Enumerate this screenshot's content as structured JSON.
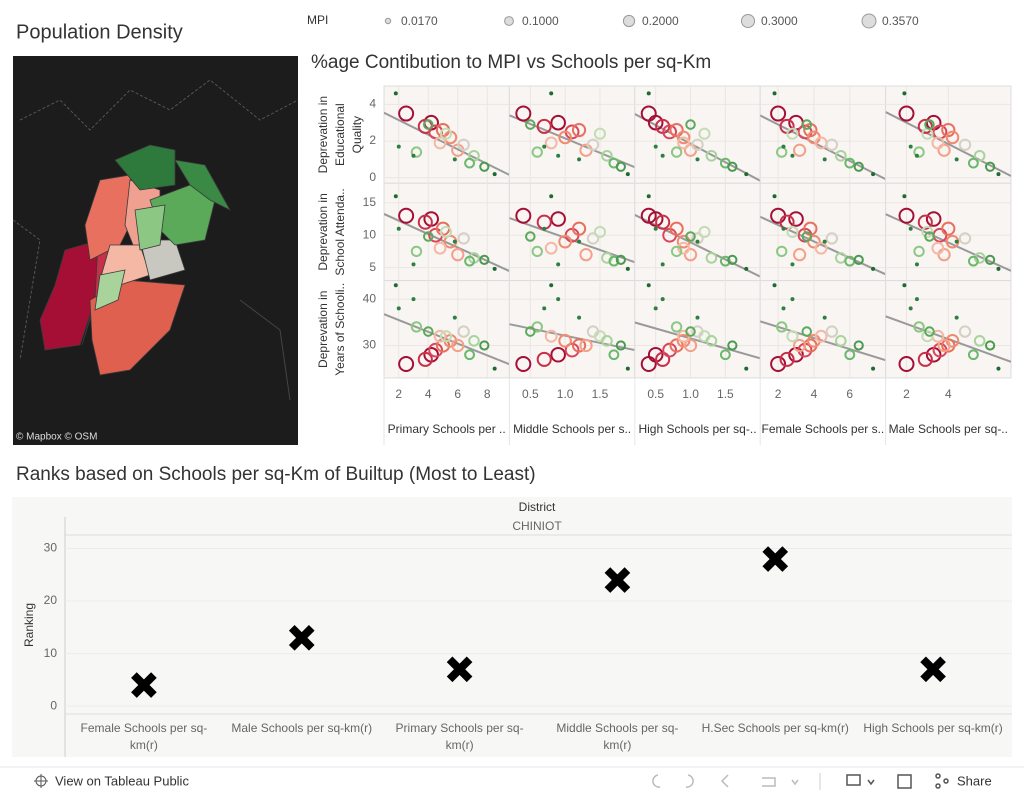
{
  "map": {
    "title": "Population Density",
    "credits": "© Mapbox © OSM"
  },
  "chart_data": [
    {
      "type": "scatter-matrix",
      "title": "%age Contibution to MPI vs Schools per sq-Km",
      "size_legend": {
        "title": "MPI",
        "ticks": [
          {
            "value": 0.017,
            "label": "0.0170"
          },
          {
            "value": 0.1,
            "label": "0.1000"
          },
          {
            "value": 0.2,
            "label": "0.2000"
          },
          {
            "value": 0.3,
            "label": "0.3000"
          },
          {
            "value": 0.357,
            "label": "0.3570"
          }
        ]
      },
      "columns": [
        {
          "label": "Primary Schools per ..",
          "xlim": [
            1,
            9.5
          ],
          "xticks": [
            2,
            4,
            6,
            8
          ],
          "x": [
            2.5,
            4.2,
            3.8,
            4.5,
            5.0,
            5.5,
            6.0,
            4.8,
            6.4,
            5.2,
            7.1,
            3.2,
            6.8,
            4.0,
            7.8,
            2.0,
            3.0,
            8.5,
            1.8,
            5.8
          ]
        },
        {
          "label": "Middle Schools per s..",
          "xlim": [
            0.2,
            2.0
          ],
          "xticks": [
            0.5,
            {
              "value": 1,
              "label": "1.0"
            },
            1.5
          ],
          "x": [
            0.4,
            0.9,
            0.7,
            1.1,
            1.2,
            1.0,
            1.3,
            0.8,
            1.4,
            1.5,
            1.6,
            0.6,
            1.7,
            0.5,
            1.8,
            0.7,
            0.9,
            1.9,
            0.8,
            1.2
          ]
        },
        {
          "label": "High Schools per sq-..",
          "xlim": [
            0.2,
            2.0
          ],
          "xticks": [
            0.5,
            {
              "value": 1,
              "label": "1.0"
            },
            1.5
          ],
          "x": [
            0.4,
            0.5,
            0.6,
            0.7,
            0.8,
            0.9,
            1.0,
            0.9,
            1.1,
            1.2,
            1.3,
            0.8,
            1.5,
            1.0,
            1.6,
            0.5,
            0.6,
            1.8,
            0.4,
            1.1
          ]
        },
        {
          "label": "Female Schools per s..",
          "xlim": [
            1,
            8
          ],
          "xticks": [
            2,
            4,
            6
          ],
          "x": [
            2.0,
            3.0,
            2.5,
            3.5,
            3.8,
            4.0,
            3.2,
            4.4,
            5.0,
            2.8,
            5.5,
            2.2,
            6.0,
            3.6,
            6.5,
            2.3,
            2.8,
            7.3,
            1.8,
            4.6
          ]
        },
        {
          "label": "Male Schools per sq-..",
          "xlim": [
            1,
            7
          ],
          "xticks": [
            2,
            4
          ],
          "x": [
            2.0,
            3.3,
            2.9,
            3.6,
            4.0,
            4.2,
            3.8,
            3.5,
            4.8,
            3.0,
            5.5,
            2.6,
            5.2,
            3.1,
            6.0,
            2.2,
            2.5,
            6.4,
            1.9,
            4.4
          ]
        }
      ],
      "rows": [
        {
          "label_lines": [
            "Deprevation in",
            "Educational",
            "Quality"
          ],
          "ylim": [
            -0.3,
            5
          ],
          "yticks": [
            0,
            2,
            4
          ],
          "y": [
            3.5,
            3.0,
            2.8,
            2.5,
            2.6,
            2.2,
            1.5,
            1.9,
            1.8,
            2.4,
            1.2,
            1.4,
            0.8,
            2.9,
            0.6,
            1.7,
            1.2,
            0.2,
            4.6,
            1.0
          ]
        },
        {
          "label_lines": [
            "Deprevation in",
            "School Attenda.."
          ],
          "ylim": [
            3,
            18
          ],
          "yticks": [
            5,
            10,
            15
          ],
          "y": [
            13,
            12.5,
            12,
            10,
            11,
            9,
            7,
            8,
            9.5,
            10.5,
            6.5,
            7.5,
            6,
            9.8,
            6.2,
            11,
            5.5,
            4.8,
            16,
            9
          ]
        },
        {
          "label_lines": [
            "Deprevation in",
            "Years of Schooli.."
          ],
          "ylim": [
            23,
            44
          ],
          "yticks": [
            30,
            40
          ],
          "y": [
            26,
            28,
            27,
            29,
            30,
            31,
            30,
            32,
            33,
            32,
            31,
            34,
            28,
            33,
            30,
            38,
            40,
            25,
            43,
            36
          ]
        }
      ],
      "mpi": [
        0.357,
        0.33,
        0.3,
        0.28,
        0.25,
        0.22,
        0.2,
        0.18,
        0.16,
        0.15,
        0.13,
        0.12,
        0.1,
        0.09,
        0.08,
        0.04,
        0.03,
        0.02,
        0.017,
        0.02
      ],
      "colors": [
        "#a50f35",
        "#a50f35",
        "#c8304a",
        "#d9455a",
        "#e8705e",
        "#f08a70",
        "#f4a088",
        "#f4b8a4",
        "#d4d0c4",
        "#c4dcb4",
        "#a8d49c",
        "#8cc884",
        "#6cb86c",
        "#5aaa5a",
        "#4a9a50",
        "#2e8040",
        "#2e8040",
        "#1e6a30",
        "#1e6a30",
        "#2e8040"
      ]
    },
    {
      "type": "dot",
      "title": "Ranks based on Schools per sq-Km of Builtup (Most to Least)",
      "header": "District",
      "facet": "CHINIOT",
      "y_label": "Ranking",
      "categories": [
        "Female Schools per sq-km(r)",
        "Male Schools per sq-km(r)",
        "Primary Schools per sq-km(r)",
        "Middle Schools per sq-km(r)",
        "H.Sec Schools per sq-km(r)",
        "High Schools per sq-km(r)"
      ],
      "values": [
        4,
        13,
        7,
        24,
        28,
        7
      ],
      "color": "#000000",
      "ylim": [
        -1.5,
        36
      ],
      "yticks": [
        0,
        10,
        20,
        30
      ],
      "grid": true
    }
  ],
  "footer": {
    "view": "View on Tableau Public",
    "share": "Share"
  }
}
